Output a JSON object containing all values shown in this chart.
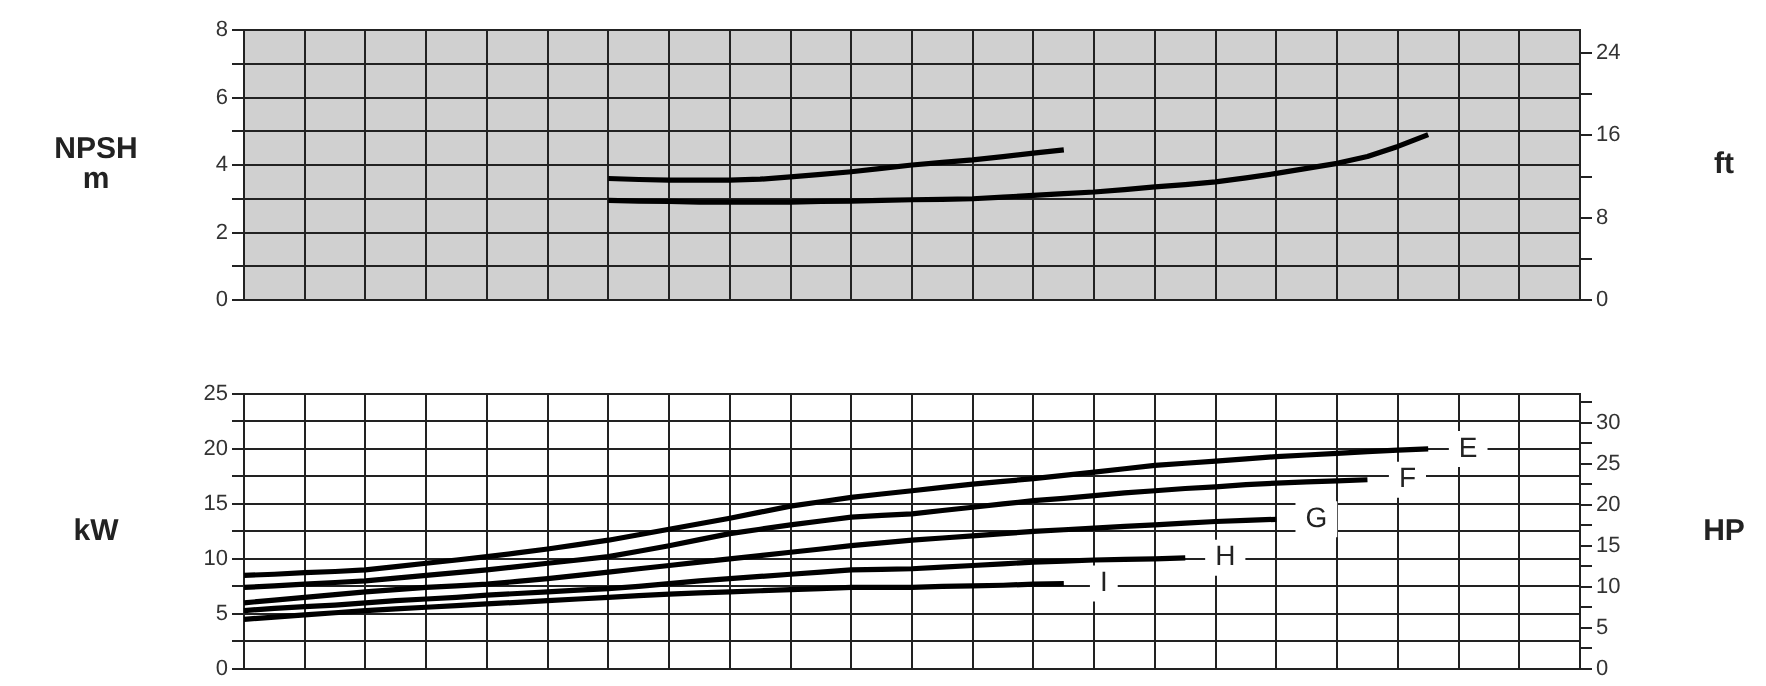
{
  "chart_data": [
    {
      "type": "line",
      "ylabel": "NPSH m",
      "y2label": "ft",
      "categories": [
        null,
        null,
        null,
        null,
        null,
        null,
        null,
        null,
        null,
        null,
        null,
        null,
        null,
        null,
        null,
        null,
        null,
        null,
        null,
        null,
        null,
        null,
        null,
        null,
        null,
        null,
        null,
        null,
        null,
        null,
        null,
        null,
        null,
        null,
        null,
        null,
        null,
        null,
        null,
        null,
        null,
        null,
        null,
        null,
        null
      ],
      "ylim": [
        0,
        8
      ],
      "yticks": [
        0,
        {
          "value": 1,
          "label": null
        },
        2,
        {
          "value": 3,
          "label": null
        },
        4,
        {
          "value": 5,
          "label": null
        },
        6,
        {
          "value": 7,
          "label": null
        },
        8
      ],
      "y2lim": [
        0,
        26.25
      ],
      "y2ticks": [
        0,
        {
          "value": 4,
          "label": null
        },
        8,
        {
          "value": 12,
          "label": null
        },
        16,
        {
          "value": 20,
          "label": null
        },
        24
      ],
      "tick_labels": "y",
      "grid": true,
      "legend": false,
      "marker": "none",
      "line_style": "solid",
      "series": [
        {
          "color": "#000000",
          "values": [
            null,
            null,
            null,
            null,
            null,
            null,
            null,
            null,
            null,
            null,
            null,
            null,
            3.6,
            3.57,
            3.55,
            3.55,
            3.55,
            3.58,
            3.65,
            3.72,
            3.8,
            3.9,
            4.0,
            4.08,
            4.15,
            4.25,
            4.35,
            4.45,
            null,
            null,
            null,
            null,
            null,
            null,
            null,
            null,
            null,
            null,
            null,
            null,
            null,
            null,
            null,
            null,
            null
          ]
        },
        {
          "color": "#000000",
          "values": [
            null,
            null,
            null,
            null,
            null,
            null,
            null,
            null,
            null,
            null,
            null,
            null,
            2.95,
            2.93,
            2.92,
            2.9,
            2.9,
            2.9,
            2.9,
            2.92,
            2.93,
            2.95,
            2.97,
            2.98,
            3.0,
            3.05,
            3.1,
            3.15,
            3.2,
            3.27,
            3.35,
            3.42,
            3.5,
            3.62,
            3.75,
            3.9,
            4.05,
            4.25,
            4.55,
            4.9,
            null,
            null,
            null,
            null,
            null
          ]
        }
      ]
    },
    {
      "type": "line",
      "ylabel": "kW",
      "y2label": "HP",
      "categories": [
        null,
        null,
        null,
        null,
        null,
        null,
        null,
        null,
        null,
        null,
        null,
        null,
        null,
        null,
        null,
        null,
        null,
        null,
        null,
        null,
        null,
        null,
        null,
        null,
        null,
        null,
        null,
        null,
        null,
        null,
        null,
        null,
        null,
        null,
        null,
        null,
        null,
        null,
        null,
        null,
        null,
        null,
        null,
        null,
        null
      ],
      "ylim": [
        0,
        25
      ],
      "yticks": [
        0,
        {
          "value": 2.5,
          "label": null
        },
        5,
        {
          "value": 7.5,
          "label": null
        },
        10,
        {
          "value": 12.5,
          "label": null
        },
        15,
        {
          "value": 17.5,
          "label": null
        },
        20,
        {
          "value": 22.5,
          "label": null
        },
        25
      ],
      "y2lim": [
        0,
        33.5
      ],
      "y2ticks": [
        0,
        {
          "value": 2.5,
          "label": null
        },
        5,
        {
          "value": 7.5,
          "label": null
        },
        10,
        {
          "value": 12.5,
          "label": null
        },
        15,
        {
          "value": 17.5,
          "label": null
        },
        20,
        {
          "value": 22.5,
          "label": null
        },
        25,
        {
          "value": 27.5,
          "label": null
        },
        30,
        {
          "value": 32.5,
          "label": null
        }
      ],
      "tick_labels": "y",
      "grid": true,
      "legend": false,
      "marker": "none",
      "line_style": "solid",
      "series": [
        {
          "name": "E",
          "color": "#000000",
          "values": [
            8.5,
            8.6,
            8.75,
            8.85,
            9.0,
            9.3,
            9.6,
            9.9,
            10.2,
            10.55,
            10.9,
            11.3,
            11.7,
            12.2,
            12.7,
            13.2,
            13.7,
            14.25,
            14.8,
            15.2,
            15.6,
            15.9,
            16.2,
            16.5,
            16.8,
            17.05,
            17.3,
            17.6,
            17.9,
            18.2,
            18.5,
            18.7,
            18.9,
            19.1,
            19.3,
            19.45,
            19.6,
            19.75,
            19.9,
            20.0,
            null,
            null,
            null,
            null,
            null
          ]
        },
        {
          "name": "F",
          "color": "#000000",
          "values": [
            7.4,
            7.55,
            7.7,
            7.85,
            8.0,
            8.25,
            8.5,
            8.75,
            9.0,
            9.3,
            9.6,
            9.9,
            10.2,
            10.7,
            11.2,
            11.75,
            12.3,
            12.7,
            13.1,
            13.45,
            13.8,
            13.95,
            14.1,
            14.4,
            14.7,
            15.0,
            15.3,
            15.5,
            15.75,
            16.0,
            16.2,
            16.4,
            16.55,
            16.75,
            16.9,
            17.0,
            17.1,
            17.2,
            null,
            null,
            null,
            null,
            null,
            null,
            null
          ]
        },
        {
          "name": "G",
          "color": "#000000",
          "values": [
            6.0,
            6.25,
            6.5,
            6.75,
            7.0,
            7.2,
            7.4,
            7.55,
            7.7,
            7.95,
            8.2,
            8.5,
            8.8,
            9.1,
            9.4,
            9.7,
            10.0,
            10.3,
            10.6,
            10.9,
            11.2,
            11.45,
            11.7,
            11.9,
            12.1,
            12.3,
            12.5,
            12.65,
            12.8,
            12.95,
            13.1,
            13.25,
            13.4,
            13.5,
            13.6,
            null,
            null,
            null,
            null,
            null,
            null,
            null,
            null,
            null,
            null
          ]
        },
        {
          "name": "H",
          "color": "#000000",
          "values": [
            5.3,
            5.5,
            5.65,
            5.8,
            6.0,
            6.2,
            6.35,
            6.5,
            6.7,
            6.85,
            7.0,
            7.15,
            7.3,
            7.5,
            7.75,
            8.0,
            8.2,
            8.4,
            8.6,
            8.8,
            9.0,
            9.05,
            9.1,
            9.25,
            9.4,
            9.55,
            9.7,
            9.8,
            9.9,
            9.95,
            10.0,
            10.1,
            null,
            null,
            null,
            null,
            null,
            null,
            null,
            null,
            null,
            null,
            null,
            null,
            null
          ]
        },
        {
          "name": "I",
          "color": "#000000",
          "values": [
            4.5,
            4.7,
            4.9,
            5.1,
            5.3,
            5.45,
            5.6,
            5.75,
            5.9,
            6.05,
            6.2,
            6.35,
            6.5,
            6.65,
            6.8,
            6.9,
            7.0,
            7.1,
            7.2,
            7.3,
            7.4,
            7.4,
            7.4,
            7.5,
            7.55,
            7.6,
            7.7,
            7.75,
            null,
            null,
            null,
            null,
            null,
            null,
            null,
            null,
            null,
            null,
            null,
            null,
            null,
            null,
            null,
            null,
            null
          ]
        }
      ]
    }
  ]
}
